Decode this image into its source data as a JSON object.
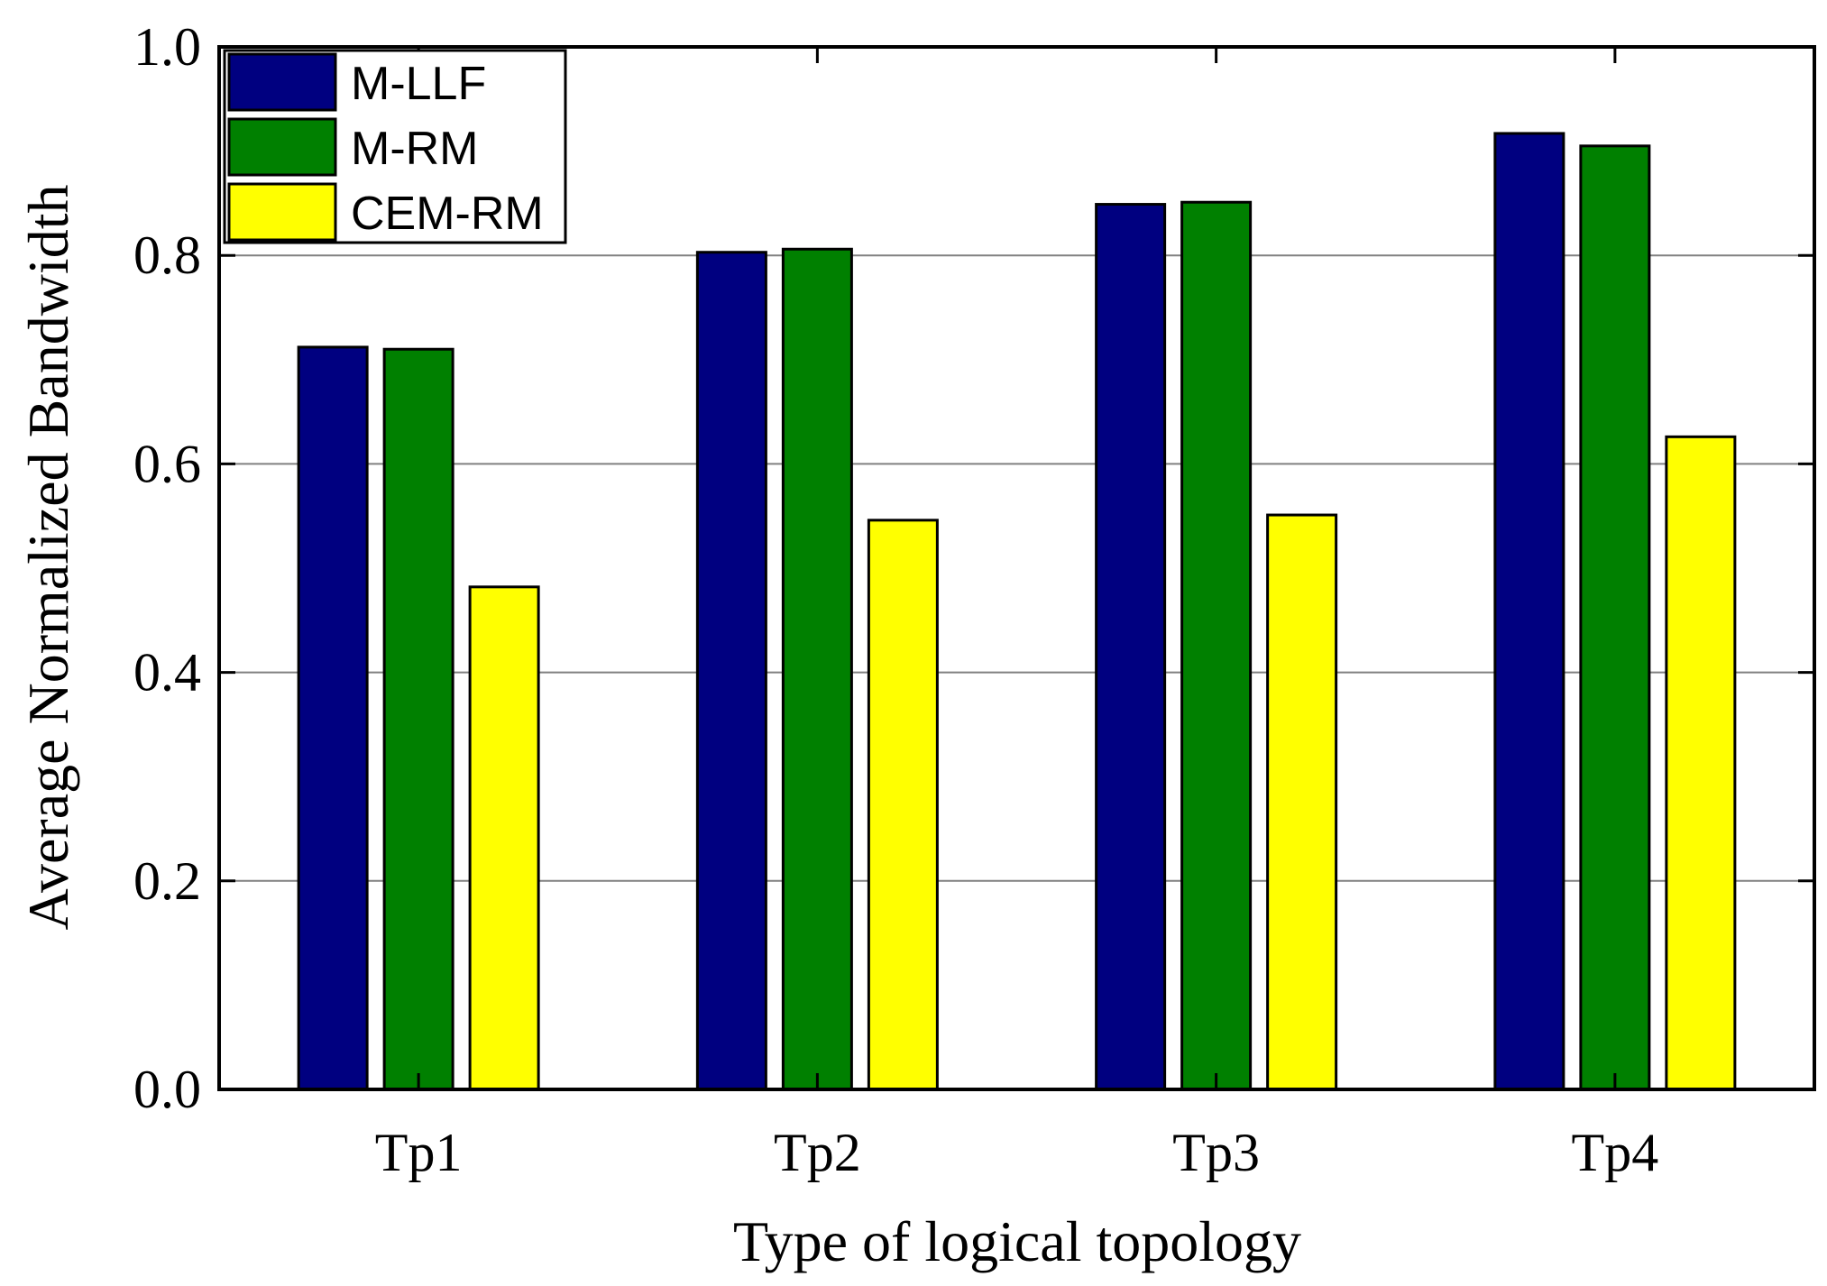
{
  "chart_data": {
    "type": "bar",
    "title": "",
    "xlabel": "Type of logical topology",
    "ylabel": "Average Normalized Bandwidth",
    "categories": [
      "Tp1",
      "Tp2",
      "Tp3",
      "Tp4"
    ],
    "series": [
      {
        "name": "M-LLF",
        "color": "#000080",
        "values": [
          0.712,
          0.803,
          0.849,
          0.917
        ]
      },
      {
        "name": "M-RM",
        "color": "#008000",
        "values": [
          0.71,
          0.806,
          0.851,
          0.905
        ]
      },
      {
        "name": "CEM-RM",
        "color": "#FFFF00",
        "values": [
          0.482,
          0.546,
          0.551,
          0.626
        ]
      }
    ],
    "ylim": [
      0.0,
      1.0
    ],
    "yticks": [
      "0.0",
      "0.2",
      "0.4",
      "0.6",
      "0.8",
      "1.0"
    ],
    "grid": true,
    "legend_position": "top-left"
  }
}
